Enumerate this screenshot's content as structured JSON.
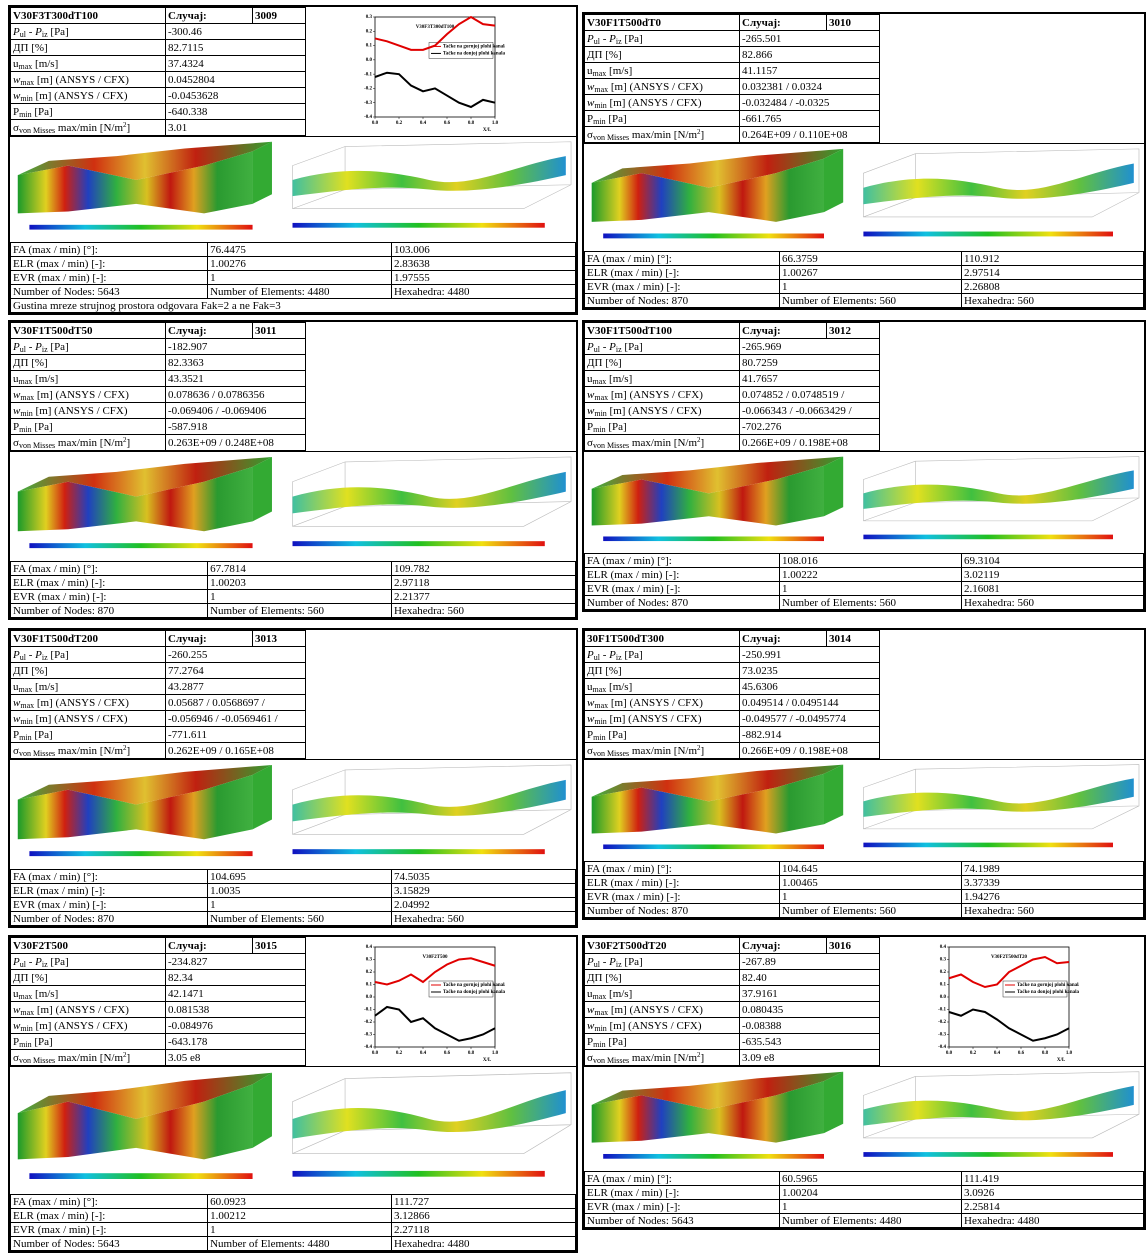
{
  "case_label": "Случај:",
  "param_labels": [
    [
      [
        "P",
        "i"
      ],
      [
        "ul",
        "s"
      ],
      [
        " - ",
        ""
      ],
      [
        "P",
        "i"
      ],
      [
        "iz",
        "s"
      ],
      [
        " [Pa]",
        ""
      ]
    ],
    [
      [
        "ДП [%]",
        ""
      ]
    ],
    [
      [
        "u",
        ""
      ],
      [
        "max",
        "s"
      ],
      [
        " [m/s]",
        ""
      ]
    ],
    [
      [
        "w",
        "i"
      ],
      [
        "max",
        "s"
      ],
      [
        " [m] (ANSYS / CFX)",
        ""
      ]
    ],
    [
      [
        "w",
        "i"
      ],
      [
        "min",
        "s"
      ],
      [
        " [m] (ANSYS / CFX)",
        ""
      ]
    ],
    [
      [
        "P",
        ""
      ],
      [
        "min",
        "s"
      ],
      [
        " [Pa]",
        ""
      ]
    ],
    [
      [
        "σ",
        ""
      ],
      [
        "von Misses",
        "s"
      ],
      [
        " max/min [N/m",
        ""
      ],
      [
        "2",
        "sup"
      ],
      [
        "]",
        ""
      ]
    ]
  ],
  "bottom_labels": [
    "FA (max / min) [°]:",
    "ELR (max / min) [-]:",
    "EVR (max / min) [-]:"
  ],
  "panels": [
    {
      "name": "V30F3T300dT100",
      "case": 3009,
      "params": [
        "-300.46",
        "82.7115",
        "37.4324",
        "0.0452804",
        "-0.0453628",
        "-640.338",
        "3.01"
      ],
      "bottom": [
        [
          "76.4475",
          "103.006"
        ],
        [
          "1.00276",
          "2.83638"
        ],
        [
          "1",
          "1.97555"
        ]
      ],
      "mesh": [
        "Number of Nodes: 5643",
        "Number of Elements: 4480",
        "Hexahedra: 4480"
      ],
      "note": "Gustina mreze strujnog prostora odgovara Fak=2 a ne Fak=3",
      "chart": {
        "type": "line",
        "title": "V30F3T300dT100",
        "xlabel": "X/L",
        "x": [
          0,
          0.1,
          0.2,
          0.3,
          0.4,
          0.5,
          0.6,
          0.7,
          0.8,
          0.9,
          1.0
        ],
        "xlim": [
          0,
          1
        ],
        "ylim": [
          -0.4,
          0.3
        ],
        "xticks": [
          {
            "value": 0,
            "label": "0.0"
          },
          0.2,
          0.4,
          0.6,
          0.8,
          {
            "value": 1,
            "label": "1.0"
          }
        ],
        "yticks": [
          0.3,
          0.2,
          0.1,
          {
            "value": 0,
            "label": "0.0"
          },
          -0.1,
          -0.2,
          -0.3,
          -0.4
        ],
        "series": [
          {
            "name": "Tačke na gornjoj plohi kanala",
            "color": "#e00000",
            "values": [
              0.15,
              0.13,
              0.1,
              0.07,
              0.07,
              0.1,
              0.18,
              0.25,
              0.3,
              0.25,
              0.24
            ]
          },
          {
            "name": "Tačke na donjoj plohi kanala",
            "color": "#000000",
            "values": [
              -0.12,
              -0.09,
              -0.1,
              -0.18,
              -0.22,
              -0.2,
              -0.25,
              -0.3,
              -0.33,
              -0.28,
              -0.3
            ]
          }
        ]
      }
    },
    {
      "name": "V30F1T500dT0",
      "case": 3010,
      "params": [
        "-265.501",
        "82.866",
        "41.1157",
        "0.032381 / 0.0324",
        "-0.032484 / -0.0325",
        "-661.765",
        "0.264E+09 / 0.110E+08"
      ],
      "bottom": [
        [
          "66.3759",
          "110.912"
        ],
        [
          "1.00267",
          "2.97514"
        ],
        [
          "1",
          "2.26808"
        ]
      ],
      "mesh": [
        "Number of Nodes: 870",
        "Number of Elements: 560",
        "Hexahedra: 560"
      ]
    },
    {
      "name": "V30F1T500dT50",
      "case": 3011,
      "params": [
        "-182.907",
        "82.3363",
        "43.3521",
        "0.078636 / 0.0786356",
        "-0.069406 / -0.069406",
        "-587.918",
        "0.263E+09 / 0.248E+08"
      ],
      "bottom": [
        [
          "67.7814",
          "109.782"
        ],
        [
          "1.00203",
          "2.97118"
        ],
        [
          "1",
          "2.21377"
        ]
      ],
      "mesh": [
        "Number of Nodes: 870",
        "Number of Elements: 560",
        "Hexahedra: 560"
      ]
    },
    {
      "name": "V30F1T500dT100",
      "case": 3012,
      "params": [
        "-265.969",
        "80.7259",
        "41.7657",
        "0.074852 / 0.0748519 /",
        "-0.066343 / -0.0663429 /",
        "-702.276",
        "0.266E+09 / 0.198E+08"
      ],
      "bottom": [
        [
          "108.016",
          "69.3104"
        ],
        [
          "1.00222",
          "3.02119"
        ],
        [
          "1",
          "2.16081"
        ]
      ],
      "mesh": [
        "Number of Nodes: 870",
        "Number of Elements: 560",
        "Hexahedra: 560"
      ]
    },
    {
      "name": "V30F1T500dT200",
      "case": 3013,
      "params": [
        "-260.255",
        "77.2764",
        "43.2877",
        "0.05687 / 0.0568697 /",
        "-0.056946 / -0.0569461 /",
        "-771.611",
        "0.262E+09 / 0.165E+08"
      ],
      "bottom": [
        [
          "104.695",
          "74.5035"
        ],
        [
          "1.0035",
          "3.15829"
        ],
        [
          "1",
          "2.04992"
        ]
      ],
      "mesh": [
        "Number of Nodes: 870",
        "Number of Elements: 560",
        "Hexahedra: 560"
      ]
    },
    {
      "name": "30F1T500dT300",
      "case": 3014,
      "params": [
        "-250.991",
        "73.0235",
        "45.6306",
        "0.049514 / 0.0495144",
        "-0.049577 / -0.0495774",
        "-882.914",
        "0.266E+09 / 0.198E+08"
      ],
      "bottom": [
        [
          "104.645",
          "74.1989"
        ],
        [
          "1.00465",
          "3.37339"
        ],
        [
          "1",
          "1.94276"
        ]
      ],
      "mesh": [
        "Number of Nodes: 870",
        "Number of Elements: 560",
        "Hexahedra: 560"
      ]
    },
    {
      "name": "V30F2T500",
      "case": 3015,
      "params": [
        "-234.827",
        "82.34",
        "42.1471",
        "0.081538",
        "-0.084976",
        "-643.178",
        "3.05 e8"
      ],
      "bottom": [
        [
          "60.0923",
          "111.727"
        ],
        [
          "1.00212",
          "3.12866"
        ],
        [
          "1",
          "2.27118"
        ]
      ],
      "mesh": [
        "Number of Nodes: 5643",
        "Number of Elements: 4480",
        "Hexahedra: 4480"
      ],
      "chart": {
        "type": "line",
        "title": "V30F2T500",
        "xlabel": "X/L",
        "x": [
          0,
          0.1,
          0.2,
          0.3,
          0.4,
          0.5,
          0.6,
          0.7,
          0.8,
          0.9,
          1.0
        ],
        "xlim": [
          0,
          1
        ],
        "ylim": [
          -0.4,
          0.4
        ],
        "xticks": [
          {
            "value": 0,
            "label": "0.0"
          },
          0.2,
          0.4,
          0.6,
          0.8,
          {
            "value": 1,
            "label": "1.0"
          }
        ],
        "yticks": [
          0.4,
          0.3,
          0.2,
          0.1,
          {
            "value": 0,
            "label": "0.0"
          },
          -0.1,
          -0.2,
          -0.3,
          -0.4
        ],
        "series": [
          {
            "name": "Tačke na gornjoj plohi kanala",
            "color": "#e00000",
            "values": [
              0.12,
              0.1,
              0.13,
              0.18,
              0.12,
              0.2,
              0.26,
              0.3,
              0.31,
              0.28,
              0.25
            ]
          },
          {
            "name": "Tačke na donjoj plohi kanala",
            "color": "#000000",
            "values": [
              -0.15,
              -0.08,
              -0.1,
              -0.2,
              -0.17,
              -0.25,
              -0.3,
              -0.35,
              -0.33,
              -0.3,
              -0.25
            ]
          }
        ]
      }
    },
    {
      "name": "V30F2T500dT20",
      "case": 3016,
      "params": [
        "-267.89",
        "82.40",
        "37.9161",
        "0.080435",
        "-0.08388",
        "-635.543",
        "3.09 e8"
      ],
      "bottom": [
        [
          "60.5965",
          "111.419"
        ],
        [
          "1.00204",
          "3.0926"
        ],
        [
          "1",
          "2.25814"
        ]
      ],
      "mesh": [
        "Number of Nodes: 5643",
        "Number of Elements: 4480",
        "Hexahedra: 4480"
      ],
      "chart": {
        "type": "line",
        "title": "V30F2T500dT20",
        "xlabel": "X/L",
        "x": [
          0,
          0.1,
          0.2,
          0.3,
          0.4,
          0.5,
          0.6,
          0.7,
          0.8,
          0.9,
          1.0
        ],
        "xlim": [
          0,
          1
        ],
        "ylim": [
          -0.4,
          0.4
        ],
        "xticks": [
          {
            "value": 0,
            "label": "0.0"
          },
          0.2,
          0.4,
          0.6,
          0.8,
          {
            "value": 1,
            "label": "1.0"
          }
        ],
        "yticks": [
          0.4,
          0.3,
          0.2,
          0.1,
          {
            "value": 0,
            "label": "0.0"
          },
          -0.1,
          -0.2,
          -0.3,
          -0.4
        ],
        "series": [
          {
            "name": "Tačke na gornjoj plohi kanala",
            "color": "#e00000",
            "values": [
              0.15,
              0.18,
              0.12,
              0.08,
              0.1,
              0.2,
              0.25,
              0.3,
              0.32,
              0.27,
              0.28
            ]
          },
          {
            "name": "Tačke na donjoj plohi kanala",
            "color": "#000000",
            "values": [
              -0.12,
              -0.15,
              -0.1,
              -0.12,
              -0.18,
              -0.25,
              -0.3,
              -0.35,
              -0.33,
              -0.3,
              -0.25
            ]
          }
        ]
      }
    }
  ]
}
